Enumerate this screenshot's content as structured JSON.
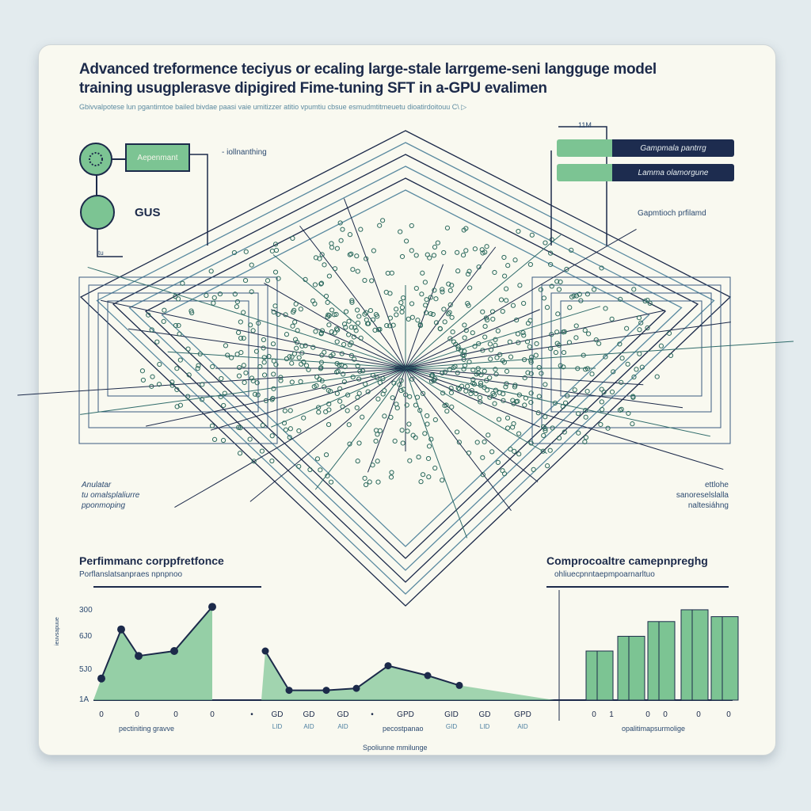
{
  "title_line1": "Advanced treformence teciyus or ecaling large-stale larrgeme-seni langguge model",
  "title_line2": "training usugplerasve dipigired Fime-tuning SFT  in a-GPU evalimen",
  "subtitle": "Gbivvalpotese lun pgantimtoe bailed bivdae paasi vaie umitizzer atitio vpumtiu cbsue esmudmtitmeuetu dioatirdoitouu C\\ ▷",
  "left_nodes": {
    "box_label": "Aepenmant",
    "box_note": "- iollnanthing",
    "circle_label": "GUS",
    "small_mark": "tu"
  },
  "right_legend": {
    "header": "11M",
    "items": [
      "Gampmala pantrrg",
      "Lamma olamorgune"
    ],
    "note": "Gapmtioch prfilamd"
  },
  "side_labels": {
    "left": [
      "Anulatar",
      "tu omalsplaliurre",
      "pponmoping"
    ],
    "right": [
      "ettlohe",
      "sanoreselslalla",
      "naltesiáhng"
    ]
  },
  "charts": {
    "left_title": "Perfimmanc corppfretfonce",
    "left_subtitle": "Porflanslatsanpraes npnpnoo",
    "right_title": "Comprocoaltre camepnpreghg",
    "right_subtitle": "ohliuecpnntaepmpoarnarltuo",
    "y_ticks": [
      "300",
      "6J0",
      "5J0",
      "1A"
    ],
    "y_axis_label": "ieuvsapuue",
    "left_x_ticks": [
      "0",
      "0",
      "0",
      "0"
    ],
    "left_x_label": "pectiniting gravve",
    "mid_x_ticks": [
      "•",
      "GD",
      "GD",
      "GD",
      "•",
      "GPD",
      "GID",
      "GD",
      "GPD"
    ],
    "mid_x_sub": [
      "LID",
      "AID",
      "AID",
      "GID",
      "LID",
      "AID"
    ],
    "mid_x_label": "pecostpanao",
    "bottom_label": "Spoliunne mmilunge",
    "right_x_ticks": [
      "0",
      "1",
      "0",
      "0",
      "0",
      "0"
    ],
    "right_x_label": "opalitimapsurmolige",
    "left_area": [
      0.22,
      0.72,
      0.45,
      0.5,
      0.95
    ],
    "mid_line": [
      0.5,
      0.1,
      0.1,
      0.12,
      0.35,
      0.25,
      0.15
    ],
    "bars": [
      0.5,
      0.65,
      0.8,
      0.92,
      0.85
    ],
    "accent": "#7cc493",
    "ink": "#1c2a4a"
  }
}
